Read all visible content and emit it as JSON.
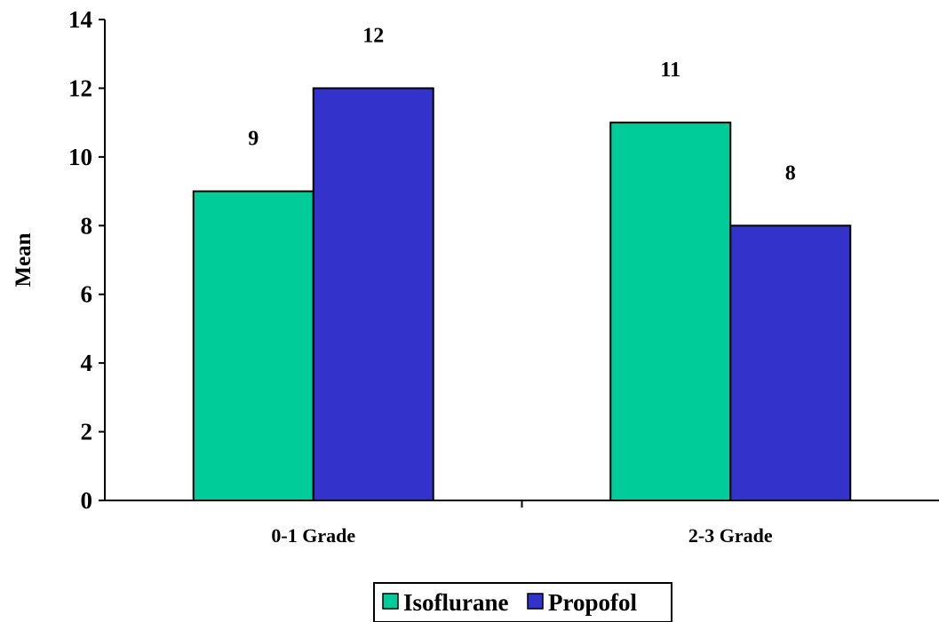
{
  "chart_data": {
    "type": "bar",
    "categories": [
      "0-1 Grade",
      "2-3 Grade"
    ],
    "series": [
      {
        "name": "Isoflurane",
        "values": [
          9,
          11
        ],
        "color": "#00CC99"
      },
      {
        "name": "Propofol",
        "values": [
          12,
          8
        ],
        "color": "#3333CC"
      }
    ],
    "data_labels": [
      [
        "9",
        "12"
      ],
      [
        "11",
        "8"
      ]
    ],
    "ylabel": "Mean",
    "xlabel": "",
    "ylim": [
      0,
      14
    ],
    "y_ticks": [
      0,
      2,
      4,
      6,
      8,
      10,
      12,
      14
    ],
    "grid": false,
    "legend_position": "bottom"
  }
}
